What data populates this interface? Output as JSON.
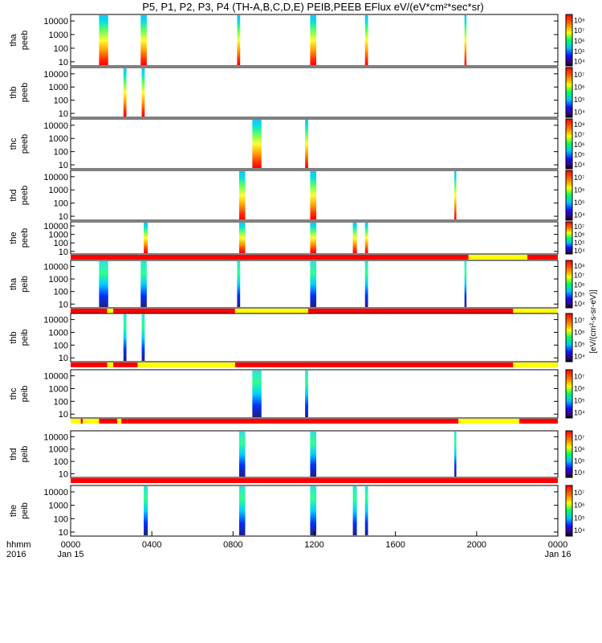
{
  "title": "P5, P1, P2, P3, P4 (TH-A,B,C,D,E) PEIB,PEEB EFlux eV/(eV*cm²*sec*sr)",
  "colorbar_unit": "[eV/(cm²-s-sr-eV)]",
  "x_axis": {
    "row_label_1": "hhmm",
    "row_label_2": "2016",
    "ticks": [
      {
        "label": "0000",
        "sub": "Jan 15",
        "hour": 0
      },
      {
        "label": "0400",
        "sub": "",
        "hour": 4
      },
      {
        "label": "0800",
        "sub": "",
        "hour": 8
      },
      {
        "label": "1200",
        "sub": "",
        "hour": 12
      },
      {
        "label": "1600",
        "sub": "",
        "hour": 16
      },
      {
        "label": "2000",
        "sub": "",
        "hour": 20
      },
      {
        "label": "0000",
        "sub": "Jan 16",
        "hour": 24
      }
    ]
  },
  "chart_data": {
    "type": "heatmap",
    "x_range_hours": [
      0,
      24
    ],
    "y_scale": "log",
    "y_ticks": [
      "10",
      "100",
      "1000",
      "10000"
    ],
    "panels": [
      {
        "probe": "tha",
        "instrument": "peeb",
        "bursts": [
          [
            1.4,
            1.85
          ],
          [
            3.45,
            3.75
          ],
          [
            8.2,
            8.35
          ],
          [
            11.8,
            12.1
          ],
          [
            14.5,
            14.65
          ],
          [
            19.4,
            19.5
          ]
        ],
        "mode_bar": null,
        "cbar": [
          "10⁴",
          "10⁵",
          "10⁶",
          "10⁷",
          "10⁸"
        ]
      },
      {
        "probe": "thb",
        "instrument": "peeb",
        "bursts": [
          [
            2.6,
            2.75
          ],
          [
            3.5,
            3.65
          ]
        ],
        "mode_bar": null,
        "cbar": [
          "10⁴",
          "10⁵",
          "10⁶",
          "10⁷"
        ]
      },
      {
        "probe": "thc",
        "instrument": "peeb",
        "bursts": [
          [
            8.95,
            9.4
          ],
          [
            11.55,
            11.7
          ]
        ],
        "mode_bar": null,
        "cbar": [
          "10⁴",
          "10⁵",
          "10⁶",
          "10⁷",
          "10⁸"
        ]
      },
      {
        "probe": "thd",
        "instrument": "peeb",
        "bursts": [
          [
            8.3,
            8.6
          ],
          [
            11.8,
            12.1
          ],
          [
            18.9,
            19.0
          ]
        ],
        "mode_bar": null,
        "cbar": [
          "10⁴",
          "10⁵",
          "10⁶",
          "10⁷"
        ]
      },
      {
        "probe": "the",
        "instrument": "peeb",
        "bursts": [
          [
            3.6,
            3.8
          ],
          [
            8.3,
            8.6
          ],
          [
            11.8,
            12.1
          ],
          [
            13.9,
            14.1
          ],
          [
            14.5,
            14.65
          ]
        ],
        "mode_bar": [
          [
            0,
            19.6,
            "red"
          ],
          [
            19.6,
            22.5,
            "yellow"
          ],
          [
            22.5,
            24,
            "red"
          ]
        ],
        "cbar": [
          "10⁴",
          "10⁵",
          "10⁶",
          "10⁷"
        ]
      },
      {
        "probe": "tha",
        "instrument": "peib",
        "bursts": [
          [
            1.4,
            1.85
          ],
          [
            3.45,
            3.75
          ],
          [
            8.2,
            8.35
          ],
          [
            11.8,
            12.1
          ],
          [
            14.5,
            14.65
          ],
          [
            19.4,
            19.5
          ]
        ],
        "mode_bar": [
          [
            0,
            1.8,
            "red"
          ],
          [
            1.8,
            2.1,
            "yellow"
          ],
          [
            2.1,
            8.1,
            "red"
          ],
          [
            8.1,
            11.7,
            "yellow"
          ],
          [
            11.7,
            21.8,
            "red"
          ],
          [
            21.8,
            24,
            "yellow"
          ]
        ],
        "cbar": [
          "10⁴",
          "10⁵",
          "10⁶",
          "10⁷",
          "10⁸"
        ]
      },
      {
        "probe": "thb",
        "instrument": "peib",
        "bursts": [
          [
            2.6,
            2.75
          ],
          [
            3.5,
            3.65
          ]
        ],
        "mode_bar": [
          [
            0,
            1.8,
            "red"
          ],
          [
            1.8,
            2.1,
            "yellow"
          ],
          [
            2.1,
            3.3,
            "red"
          ],
          [
            3.3,
            8.1,
            "yellow"
          ],
          [
            8.1,
            21.8,
            "red"
          ],
          [
            21.8,
            24,
            "yellow"
          ]
        ],
        "cbar": [
          "10⁴",
          "10⁵",
          "10⁶",
          "10⁷"
        ]
      },
      {
        "probe": "thc",
        "instrument": "peib",
        "bursts": [
          [
            8.95,
            9.4
          ],
          [
            11.55,
            11.7
          ]
        ],
        "mode_bar": [
          [
            0,
            0.5,
            "yellow"
          ],
          [
            0.5,
            0.6,
            "red"
          ],
          [
            0.6,
            1.4,
            "yellow"
          ],
          [
            1.4,
            2.3,
            "red"
          ],
          [
            2.3,
            2.5,
            "yellow"
          ],
          [
            2.5,
            2.8,
            "red"
          ],
          [
            2.8,
            19.1,
            "red"
          ],
          [
            19.1,
            22.1,
            "yellow"
          ],
          [
            22.1,
            24,
            "red"
          ]
        ],
        "cbar": [
          "10⁴",
          "10⁵",
          "10⁶",
          "10⁷"
        ]
      },
      {
        "probe": "thd",
        "instrument": "peib",
        "bursts": [
          [
            8.3,
            8.6
          ],
          [
            11.8,
            12.1
          ],
          [
            18.9,
            19.0
          ]
        ],
        "mode_bar": [
          [
            0,
            24,
            "red"
          ]
        ],
        "cbar": [
          "10⁴",
          "10⁵",
          "10⁶",
          "10⁷"
        ]
      },
      {
        "probe": "the",
        "instrument": "peib",
        "bursts": [
          [
            3.6,
            3.8
          ],
          [
            8.3,
            8.6
          ],
          [
            11.8,
            12.1
          ],
          [
            13.9,
            14.1
          ],
          [
            14.5,
            14.65
          ]
        ],
        "mode_bar": null,
        "cbar": [
          "10⁴",
          "10⁵",
          "10⁶",
          "10⁷"
        ]
      }
    ]
  }
}
